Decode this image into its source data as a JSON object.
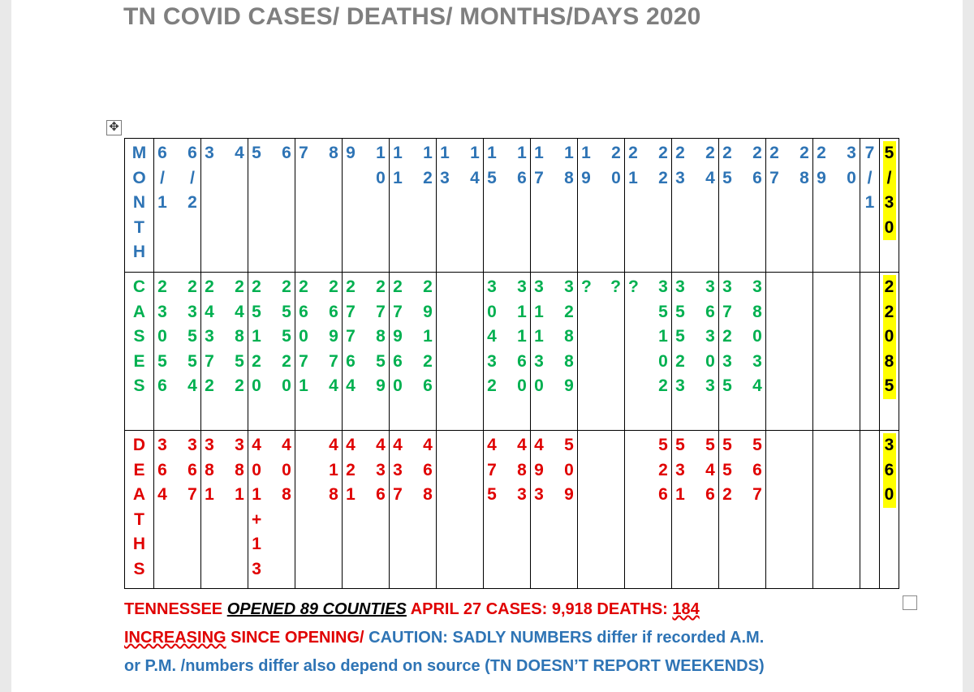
{
  "title": "TN COVID CASES/ DEATHS/ MONTHS/DAYS 2020",
  "colors": {
    "title": "#7f7f7f",
    "month": "#2e74b5",
    "cases": "#00b050",
    "deaths": "#e00000",
    "highlight": "#ffff00"
  },
  "icons": {
    "move_handle": "four-way-arrow-icon",
    "resize_handle": "square-icon"
  },
  "table": {
    "rows": [
      {
        "key": "month",
        "color": "blue",
        "cells": [
          [
            "MONTH"
          ],
          [
            "6/1",
            "6/2"
          ],
          [
            "3",
            "4"
          ],
          [
            "5",
            "6"
          ],
          [
            "7",
            "8"
          ],
          [
            "9",
            "10"
          ],
          [
            "11",
            "12"
          ],
          [
            "13",
            "14"
          ],
          [
            "15",
            "16"
          ],
          [
            "17",
            "18"
          ],
          [
            "19",
            "20"
          ],
          [
            "21",
            "22"
          ],
          [
            "23",
            "24"
          ],
          [
            "25",
            "26"
          ],
          [
            "27",
            "28"
          ],
          [
            "29",
            "30"
          ],
          [
            "7/1"
          ],
          [
            "5/30"
          ]
        ]
      },
      {
        "key": "cases",
        "color": "green",
        "cells": [
          [
            "CASES"
          ],
          [
            "23056",
            "23554"
          ],
          [
            "24372",
            "24852"
          ],
          [
            "25120",
            "25520"
          ],
          [
            "26071",
            "26974"
          ],
          [
            "27764",
            "27859"
          ],
          [
            "27960",
            "29126"
          ],
          [
            "",
            ""
          ],
          [
            "30432",
            "31160"
          ],
          [
            "31130",
            "32889"
          ],
          [
            "?",
            "?"
          ],
          [
            "?",
            "35102"
          ],
          [
            "35523",
            "36303"
          ],
          [
            "37235",
            "38034"
          ],
          [
            "",
            ""
          ],
          [
            "",
            ""
          ],
          [
            ""
          ],
          [
            "22085"
          ]
        ]
      },
      {
        "key": "deaths",
        "color": "red",
        "cells": [
          [
            "DEATHS"
          ],
          [
            "364",
            "367"
          ],
          [
            "381",
            "381"
          ],
          [
            "401+13",
            "408"
          ],
          [
            "",
            "418"
          ],
          [
            "421",
            "436"
          ],
          [
            "437",
            "468"
          ],
          [
            "",
            ""
          ],
          [
            "475",
            "483"
          ],
          [
            "493",
            "509"
          ],
          [
            "",
            ""
          ],
          [
            "",
            "526"
          ],
          [
            "531",
            "546"
          ],
          [
            "552",
            "567"
          ],
          [
            "",
            ""
          ],
          [
            "",
            ""
          ],
          [
            ""
          ],
          [
            "360"
          ]
        ]
      }
    ]
  },
  "footer": {
    "s1": "TENNESSEE",
    "s2": "OPENED  89  COUNTIES",
    "s3": " APRIL  27  CASES:  9,918  DEATHS:  ",
    "s4": "184",
    "s5": "INCREASING",
    "s6": " SINCE OPENING/",
    "s7": " CAUTION: SADLY NUMBERS differ if recorded  A.M.",
    "s8": "or  P.M. /numbers differ also depend on source (TN DOESN’T REPORT WEEKENDS)"
  }
}
